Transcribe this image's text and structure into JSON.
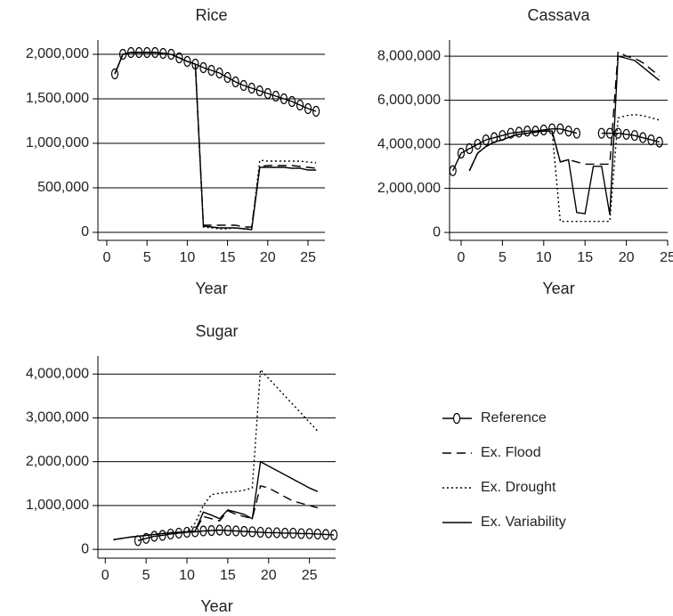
{
  "chart_data": [
    {
      "type": "line",
      "title": "Rice",
      "x_label": "Year",
      "x": [
        1,
        2,
        3,
        4,
        5,
        6,
        7,
        8,
        9,
        10,
        11,
        12,
        13,
        14,
        15,
        16,
        17,
        18,
        19,
        20,
        21,
        22,
        23,
        24,
        25,
        26
      ],
      "xlim": [
        -1.1,
        27.1
      ],
      "xticks": [
        0,
        5,
        10,
        15,
        20,
        25
      ],
      "ylim": [
        -90000,
        2160000
      ],
      "yticks": [
        {
          "value": 0,
          "label": "0"
        },
        {
          "value": 500000,
          "label": "500,000"
        },
        {
          "value": 1000000,
          "label": "1,000,000"
        },
        {
          "value": 1500000,
          "label": "1,500,000"
        },
        {
          "value": 2000000,
          "label": "2,000,000"
        }
      ],
      "grid": true,
      "series": [
        {
          "color": "#000",
          "marker": "circle",
          "values": [
            1780000,
            2000000,
            2020000,
            2020000,
            2020000,
            2020000,
            2010000,
            2000000,
            1960000,
            1920000,
            1890000,
            1850000,
            1820000,
            1790000,
            1740000,
            1690000,
            1650000,
            1620000,
            1590000,
            1560000,
            1530000,
            1500000,
            1470000,
            1430000,
            1390000,
            1360000
          ]
        },
        {
          "color": "#000",
          "dash": "10,6",
          "values": [
            1780000,
            2000000,
            2020000,
            2020000,
            2020000,
            2020000,
            2010000,
            2000000,
            1960000,
            1920000,
            1890000,
            80000,
            80000,
            80000,
            80000,
            80000,
            60000,
            60000,
            740000,
            750000,
            750000,
            750000,
            750000,
            740000,
            730000,
            720000
          ]
        },
        {
          "color": "#000",
          "dash": "2,3",
          "values": [
            1780000,
            2000000,
            2020000,
            2020000,
            2020000,
            2020000,
            2010000,
            2000000,
            1960000,
            1920000,
            1890000,
            60000,
            50000,
            40000,
            40000,
            50000,
            40000,
            40000,
            810000,
            800000,
            800000,
            800000,
            800000,
            800000,
            790000,
            780000
          ]
        },
        {
          "color": "#000",
          "values": [
            1780000,
            2000000,
            2020000,
            2020000,
            2020000,
            2020000,
            2010000,
            2000000,
            1960000,
            1920000,
            1890000,
            70000,
            60000,
            50000,
            50000,
            50000,
            40000,
            30000,
            730000,
            730000,
            730000,
            730000,
            720000,
            720000,
            700000,
            700000
          ]
        }
      ]
    },
    {
      "type": "line",
      "title": "Cassava",
      "x_label": "Year",
      "x": [
        -1,
        0,
        1,
        2,
        3,
        4,
        5,
        6,
        7,
        8,
        9,
        10,
        11,
        12,
        13,
        14,
        15,
        16,
        17,
        18,
        19,
        20,
        21,
        22,
        23,
        24
      ],
      "xlim": [
        -1.4,
        25
      ],
      "xticks": [
        0,
        5,
        10,
        15,
        20,
        25
      ],
      "ylim": [
        -360000,
        8730000
      ],
      "yticks": [
        {
          "value": 0,
          "label": "0"
        },
        {
          "value": 2000000,
          "label": "2,000,000"
        },
        {
          "value": 4000000,
          "label": "4,000,000"
        },
        {
          "value": 6000000,
          "label": "6,000,000"
        },
        {
          "value": 8000000,
          "label": "8,000,000"
        }
      ],
      "grid": true,
      "series": [
        {
          "color": "#000",
          "marker": "circle",
          "values": [
            2800000,
            3600000,
            3800000,
            4000000,
            4200000,
            4300000,
            4400000,
            4500000,
            4550000,
            4600000,
            4600000,
            4650000,
            4700000,
            4700000,
            4600000,
            4500000,
            null,
            null,
            4500000,
            4500000,
            4500000,
            4450000,
            4400000,
            4300000,
            4200000,
            4100000
          ]
        },
        {
          "color": "#000",
          "dash": "10,6",
          "values": [
            null,
            null,
            2800000,
            3600000,
            3900000,
            4100000,
            4200000,
            4350000,
            4450000,
            4500000,
            4550000,
            4600000,
            4600000,
            3200000,
            3300000,
            3200000,
            3100000,
            3100000,
            3100000,
            3100000,
            8200000,
            8000000,
            7900000,
            7700000,
            7400000,
            7100000
          ]
        },
        {
          "color": "#000",
          "dash": "2,3",
          "values": [
            null,
            null,
            2800000,
            3600000,
            3900000,
            4100000,
            4200000,
            4350000,
            4450000,
            4500000,
            4550000,
            4600000,
            4600000,
            500000,
            500000,
            500000,
            500000,
            500000,
            500000,
            500000,
            5200000,
            5300000,
            5350000,
            5300000,
            5200000,
            5100000
          ]
        },
        {
          "color": "#000",
          "values": [
            null,
            null,
            2800000,
            3600000,
            3900000,
            4100000,
            4200000,
            4350000,
            4450000,
            4500000,
            4550000,
            4600000,
            4600000,
            3200000,
            3300000,
            900000,
            850000,
            3000000,
            3000000,
            800000,
            8000000,
            7900000,
            7800000,
            7500000,
            7200000,
            6900000
          ]
        }
      ]
    },
    {
      "type": "line",
      "title": "Sugar",
      "x_label": "Year",
      "x": [
        1,
        2,
        3,
        4,
        5,
        6,
        7,
        8,
        9,
        10,
        11,
        12,
        13,
        14,
        15,
        16,
        17,
        18,
        19,
        20,
        21,
        22,
        23,
        24,
        25,
        26,
        27,
        28
      ],
      "xlim": [
        -0.9,
        28.2
      ],
      "xticks": [
        0,
        5,
        10,
        15,
        20,
        25
      ],
      "ylim": [
        -200000,
        4410000
      ],
      "yticks": [
        {
          "value": 0,
          "label": "0"
        },
        {
          "value": 1000000,
          "label": "1,000,000"
        },
        {
          "value": 2000000,
          "label": "2,000,000"
        },
        {
          "value": 3000000,
          "label": "3,000,000"
        },
        {
          "value": 4000000,
          "label": "4,000,000"
        }
      ],
      "grid": true,
      "legend": "right",
      "series": [
        {
          "name": "Reference",
          "color": "#000",
          "marker": "circle",
          "values": [
            null,
            null,
            null,
            200000,
            250000,
            300000,
            320000,
            350000,
            370000,
            390000,
            400000,
            420000,
            430000,
            440000,
            430000,
            420000,
            410000,
            400000,
            390000,
            380000,
            380000,
            370000,
            370000,
            360000,
            360000,
            350000,
            340000,
            330000
          ]
        },
        {
          "name": "Ex. Flood",
          "color": "#000",
          "dash": "10,6",
          "values": [
            220000,
            250000,
            280000,
            300000,
            320000,
            340000,
            360000,
            380000,
            390000,
            400000,
            420000,
            750000,
            700000,
            650000,
            880000,
            800000,
            750000,
            700000,
            1450000,
            1400000,
            1300000,
            1200000,
            1100000,
            1050000,
            1000000,
            950000,
            null,
            null
          ]
        },
        {
          "name": "Ex. Drought",
          "color": "#000",
          "dash": "2,3",
          "values": [
            220000,
            250000,
            280000,
            300000,
            320000,
            340000,
            360000,
            380000,
            390000,
            400000,
            600000,
            1000000,
            1250000,
            1280000,
            1300000,
            1320000,
            1350000,
            1400000,
            4100000,
            3900000,
            3700000,
            3500000,
            3300000,
            3100000,
            2900000,
            2700000,
            null,
            null
          ]
        },
        {
          "name": "Ex. Variability",
          "color": "#000",
          "values": [
            220000,
            250000,
            280000,
            300000,
            320000,
            340000,
            360000,
            380000,
            390000,
            400000,
            420000,
            850000,
            780000,
            700000,
            900000,
            850000,
            800000,
            700000,
            2000000,
            1900000,
            1800000,
            1700000,
            1600000,
            1500000,
            1400000,
            1320000,
            null,
            null
          ]
        }
      ]
    }
  ]
}
